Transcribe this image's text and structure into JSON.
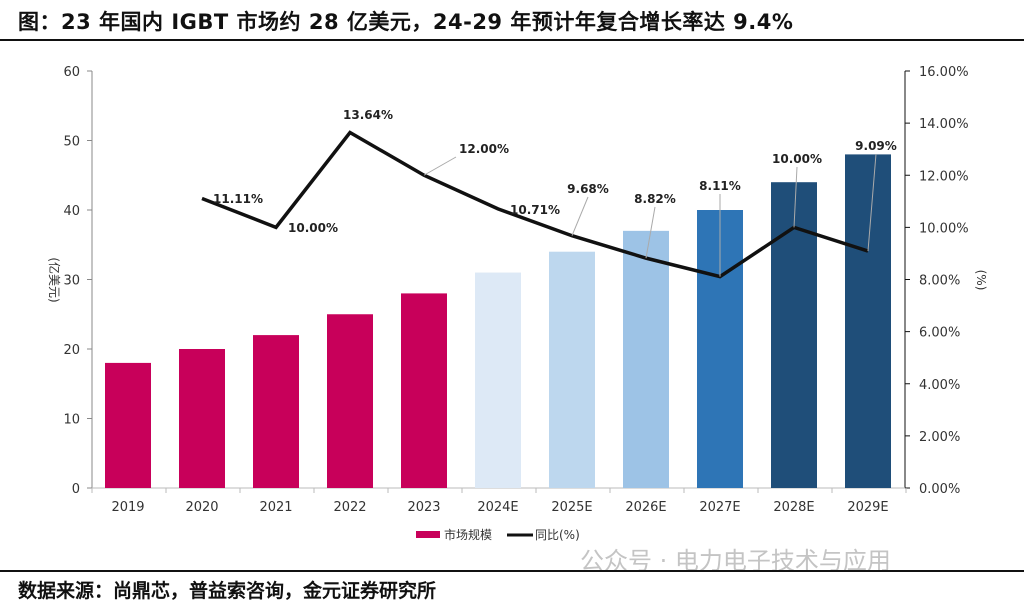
{
  "title": "图：23 年国内 IGBT 市场约 28 亿美元，24-29 年预计年复合增长率达 9.4%",
  "source": "数据来源：尚鼎芯，普益索咨询，金元证券研究所",
  "watermark": "公众号 · 电力电子技术与应用",
  "chart_data": {
    "type": "bar+line",
    "categories": [
      "2019",
      "2020",
      "2021",
      "2022",
      "2023",
      "2024E",
      "2025E",
      "2026E",
      "2027E",
      "2028E",
      "2029E"
    ],
    "series": [
      {
        "name": "市场规模",
        "type": "bar",
        "axis": "left",
        "values": [
          18,
          20,
          22,
          25,
          28,
          31,
          34,
          37,
          40,
          44,
          48
        ],
        "colors": [
          "#C8005A",
          "#C8005A",
          "#C8005A",
          "#C8005A",
          "#C8005A",
          "#DDE9F6",
          "#BDD7EE",
          "#9DC3E6",
          "#2E75B6",
          "#1F4E79",
          "#1F4E79"
        ]
      },
      {
        "name": "同比(%)",
        "type": "line",
        "axis": "right",
        "color": "#111111",
        "values": [
          null,
          11.11,
          10.0,
          13.64,
          12.0,
          10.71,
          9.68,
          8.82,
          8.11,
          10.0,
          9.09
        ],
        "labels": [
          "",
          "11.11%",
          "10.00%",
          "13.64%",
          "12.00%",
          "10.71%",
          "9.68%",
          "8.82%",
          "8.11%",
          "10.00%",
          "9.09%"
        ]
      }
    ],
    "ylabel_left": "(亿美元)",
    "ylabel_right": "(%)",
    "ylim_left": [
      0,
      60
    ],
    "ylim_right": [
      0,
      16
    ],
    "yticks_left": [
      "0",
      "10",
      "20",
      "30",
      "40",
      "50",
      "60"
    ],
    "yticks_right": [
      "0.00%",
      "2.00%",
      "4.00%",
      "6.00%",
      "8.00%",
      "10.00%",
      "12.00%",
      "14.00%",
      "16.00%"
    ],
    "grid": false,
    "legend": "bottom"
  }
}
